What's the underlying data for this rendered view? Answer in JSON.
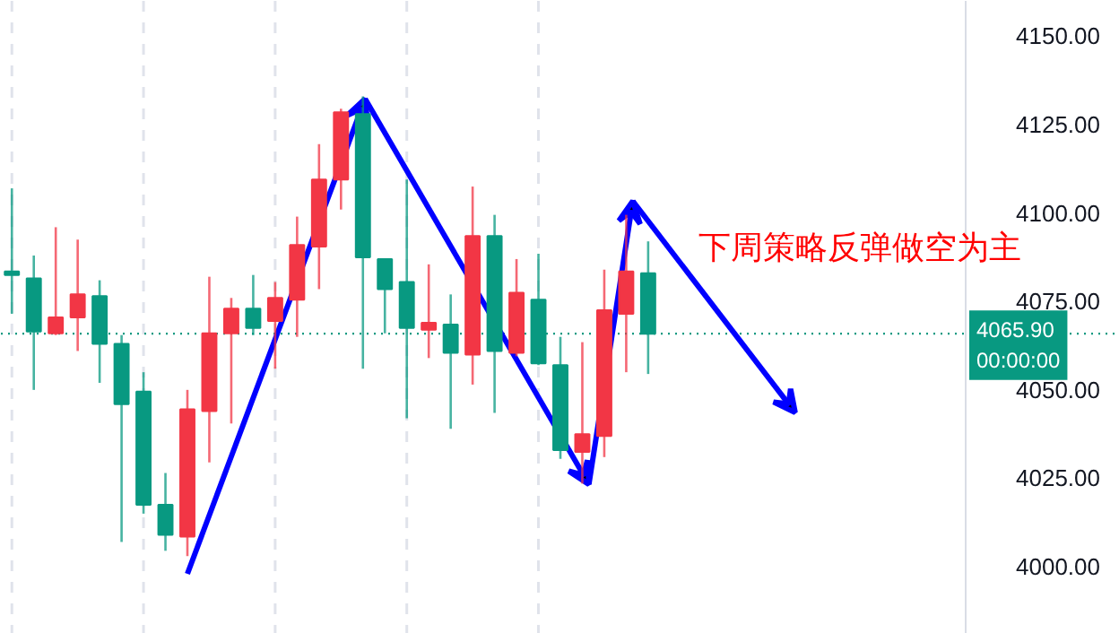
{
  "chart_data": {
    "type": "candlestick",
    "categories": [
      null,
      null,
      null,
      null,
      null,
      null,
      null,
      null,
      null,
      null,
      null,
      null,
      null,
      null,
      null,
      null,
      null,
      null,
      null,
      null,
      null,
      null,
      null,
      null,
      null,
      null,
      null,
      null,
      null,
      null,
      null,
      null,
      null,
      null,
      null,
      null,
      null,
      null,
      null,
      null,
      null,
      null,
      null,
      null,
      null,
      null,
      null,
      null,
      null,
      null,
      null
    ],
    "ohlc": [
      [
        4083.5,
        4107,
        4071.5,
        4082.5
      ],
      [
        4081.5,
        4088,
        4050,
        4066.5
      ],
      [
        4066,
        4096,
        4065.5,
        4070.5
      ],
      [
        4070.5,
        4092.5,
        4061,
        4077
      ],
      [
        4076.5,
        4081,
        4052,
        4063
      ],
      [
        4063,
        4065.5,
        4007,
        4046
      ],
      [
        4049.5,
        4055,
        4015,
        4017.5
      ],
      [
        4017.5,
        4026.5,
        4004.5,
        4009
      ],
      [
        4008.5,
        4050,
        4003,
        4044.5
      ],
      [
        4044,
        4082,
        4029.5,
        4066
      ],
      [
        4066,
        4076,
        4040.5,
        4073
      ],
      [
        4073,
        4082.5,
        4065.5,
        4067.5
      ],
      [
        4069.5,
        4080.5,
        4056,
        4076
      ],
      [
        4075.5,
        4099,
        4065,
        4091
      ],
      [
        4090.5,
        4119.5,
        4078.5,
        4109.5
      ],
      [
        4109.5,
        4129.5,
        4101,
        4128.5
      ],
      [
        4128,
        4133,
        4056,
        4087.5
      ],
      [
        4087,
        4087,
        4066,
        4078.5
      ],
      [
        4080.5,
        4109.5,
        4042,
        4067.5
      ],
      [
        4067,
        4085.5,
        4059,
        4069
      ],
      [
        4068.5,
        4077,
        4039,
        4060.5
      ],
      [
        4060,
        4107.5,
        4051.5,
        4093.5
      ],
      [
        4093.5,
        4099.5,
        4043.5,
        4061
      ],
      [
        4060.5,
        4087,
        4059.5,
        4077.5
      ],
      [
        4075.5,
        4088.5,
        4057,
        4057.5
      ],
      [
        4057,
        4065,
        4030.5,
        4033
      ],
      [
        4032.5,
        4063.5,
        4023.5,
        4037.5
      ],
      [
        4037,
        4084,
        4031,
        4072.5
      ],
      [
        4071.5,
        4099.5,
        4055,
        4083.5
      ],
      [
        4083,
        4092,
        4054.5,
        4065.9
      ],
      null,
      null,
      null,
      null,
      null,
      null,
      null,
      null,
      null,
      null,
      null,
      null,
      null,
      null,
      null,
      null,
      null,
      null,
      null,
      null,
      null
    ],
    "colors": [
      "#089981",
      "#089981",
      "#f23645",
      "#f23645",
      "#089981",
      "#089981",
      "#089981",
      "#089981",
      "#f23645",
      "#f23645",
      "#f23645",
      "#089981",
      "#f23645",
      "#f23645",
      "#f23645",
      "#f23645",
      "#089981",
      "#089981",
      "#089981",
      "#f23645",
      "#089981",
      "#f23645",
      "#089981",
      "#f23645",
      "#089981",
      "#089981",
      "#f23645",
      "#f23645",
      "#f23645",
      "#089981",
      null,
      null,
      null,
      null,
      null,
      null,
      null,
      null,
      null,
      null,
      null,
      null,
      null,
      null,
      null,
      null,
      null,
      null,
      null,
      null,
      null
    ],
    "ylim": [
      3981,
      4160
    ],
    "yticks": [
      {
        "value": 4000,
        "label": "4000.00"
      },
      {
        "value": 4025,
        "label": "4025.00"
      },
      {
        "value": 4050,
        "label": "4050.00"
      },
      {
        "value": 4075,
        "label": "4075.00"
      },
      {
        "value": 4100,
        "label": "4100.00"
      },
      {
        "value": 4125,
        "label": "4125.00"
      },
      {
        "value": 4150,
        "label": "4150.00"
      }
    ],
    "ref_lines": [
      {
        "axis": "y",
        "value": 4065.9,
        "label": "4065.90",
        "color": "#089981",
        "line_style": "dotted"
      }
    ],
    "annotations": [
      "下周策略反弹做空为主",
      "00:00:00"
    ],
    "grid": "x",
    "tick_labels": "y"
  }
}
